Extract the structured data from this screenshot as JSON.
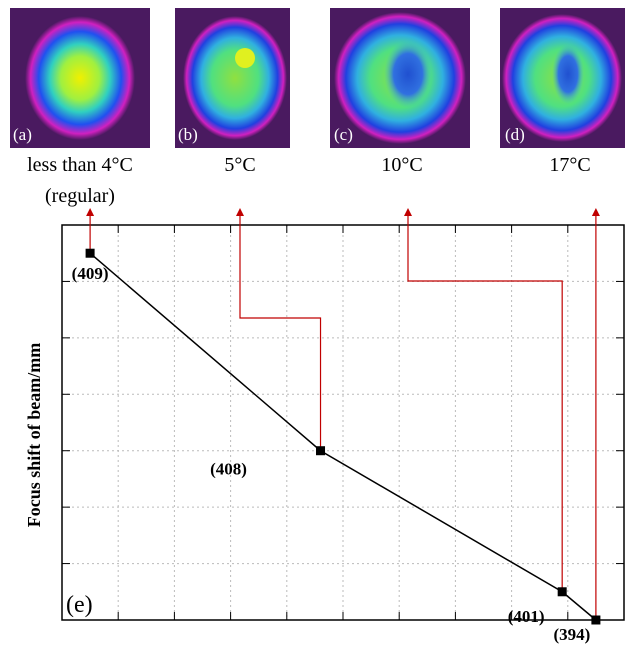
{
  "panels": [
    {
      "tag": "(a)",
      "caption": [
        "less than 4°C",
        "(regular)"
      ]
    },
    {
      "tag": "(b)",
      "caption": [
        "5°C"
      ]
    },
    {
      "tag": "(c)",
      "caption": [
        "10°C"
      ]
    },
    {
      "tag": "(d)",
      "caption": [
        "17°C"
      ]
    }
  ],
  "chart_data": {
    "type": "line",
    "panel_tag": "(e)",
    "y_label": "Focus shift of beam/mm",
    "x": [
      0.5,
      4.6,
      8.9,
      9.5
    ],
    "values": [
      6.5,
      3.0,
      0.5,
      0.0
    ],
    "point_labels": [
      "(409)",
      "(408)",
      "(401)",
      "(394)"
    ],
    "color": "#000000",
    "arrow_color": "#c00000",
    "xlim": [
      0,
      10
    ],
    "ylim": [
      0,
      7
    ],
    "xticks": [
      1,
      2,
      3,
      4,
      5,
      6,
      7,
      8,
      9
    ],
    "yticks": [
      1,
      2,
      3,
      4,
      5,
      6
    ],
    "grid": true
  }
}
